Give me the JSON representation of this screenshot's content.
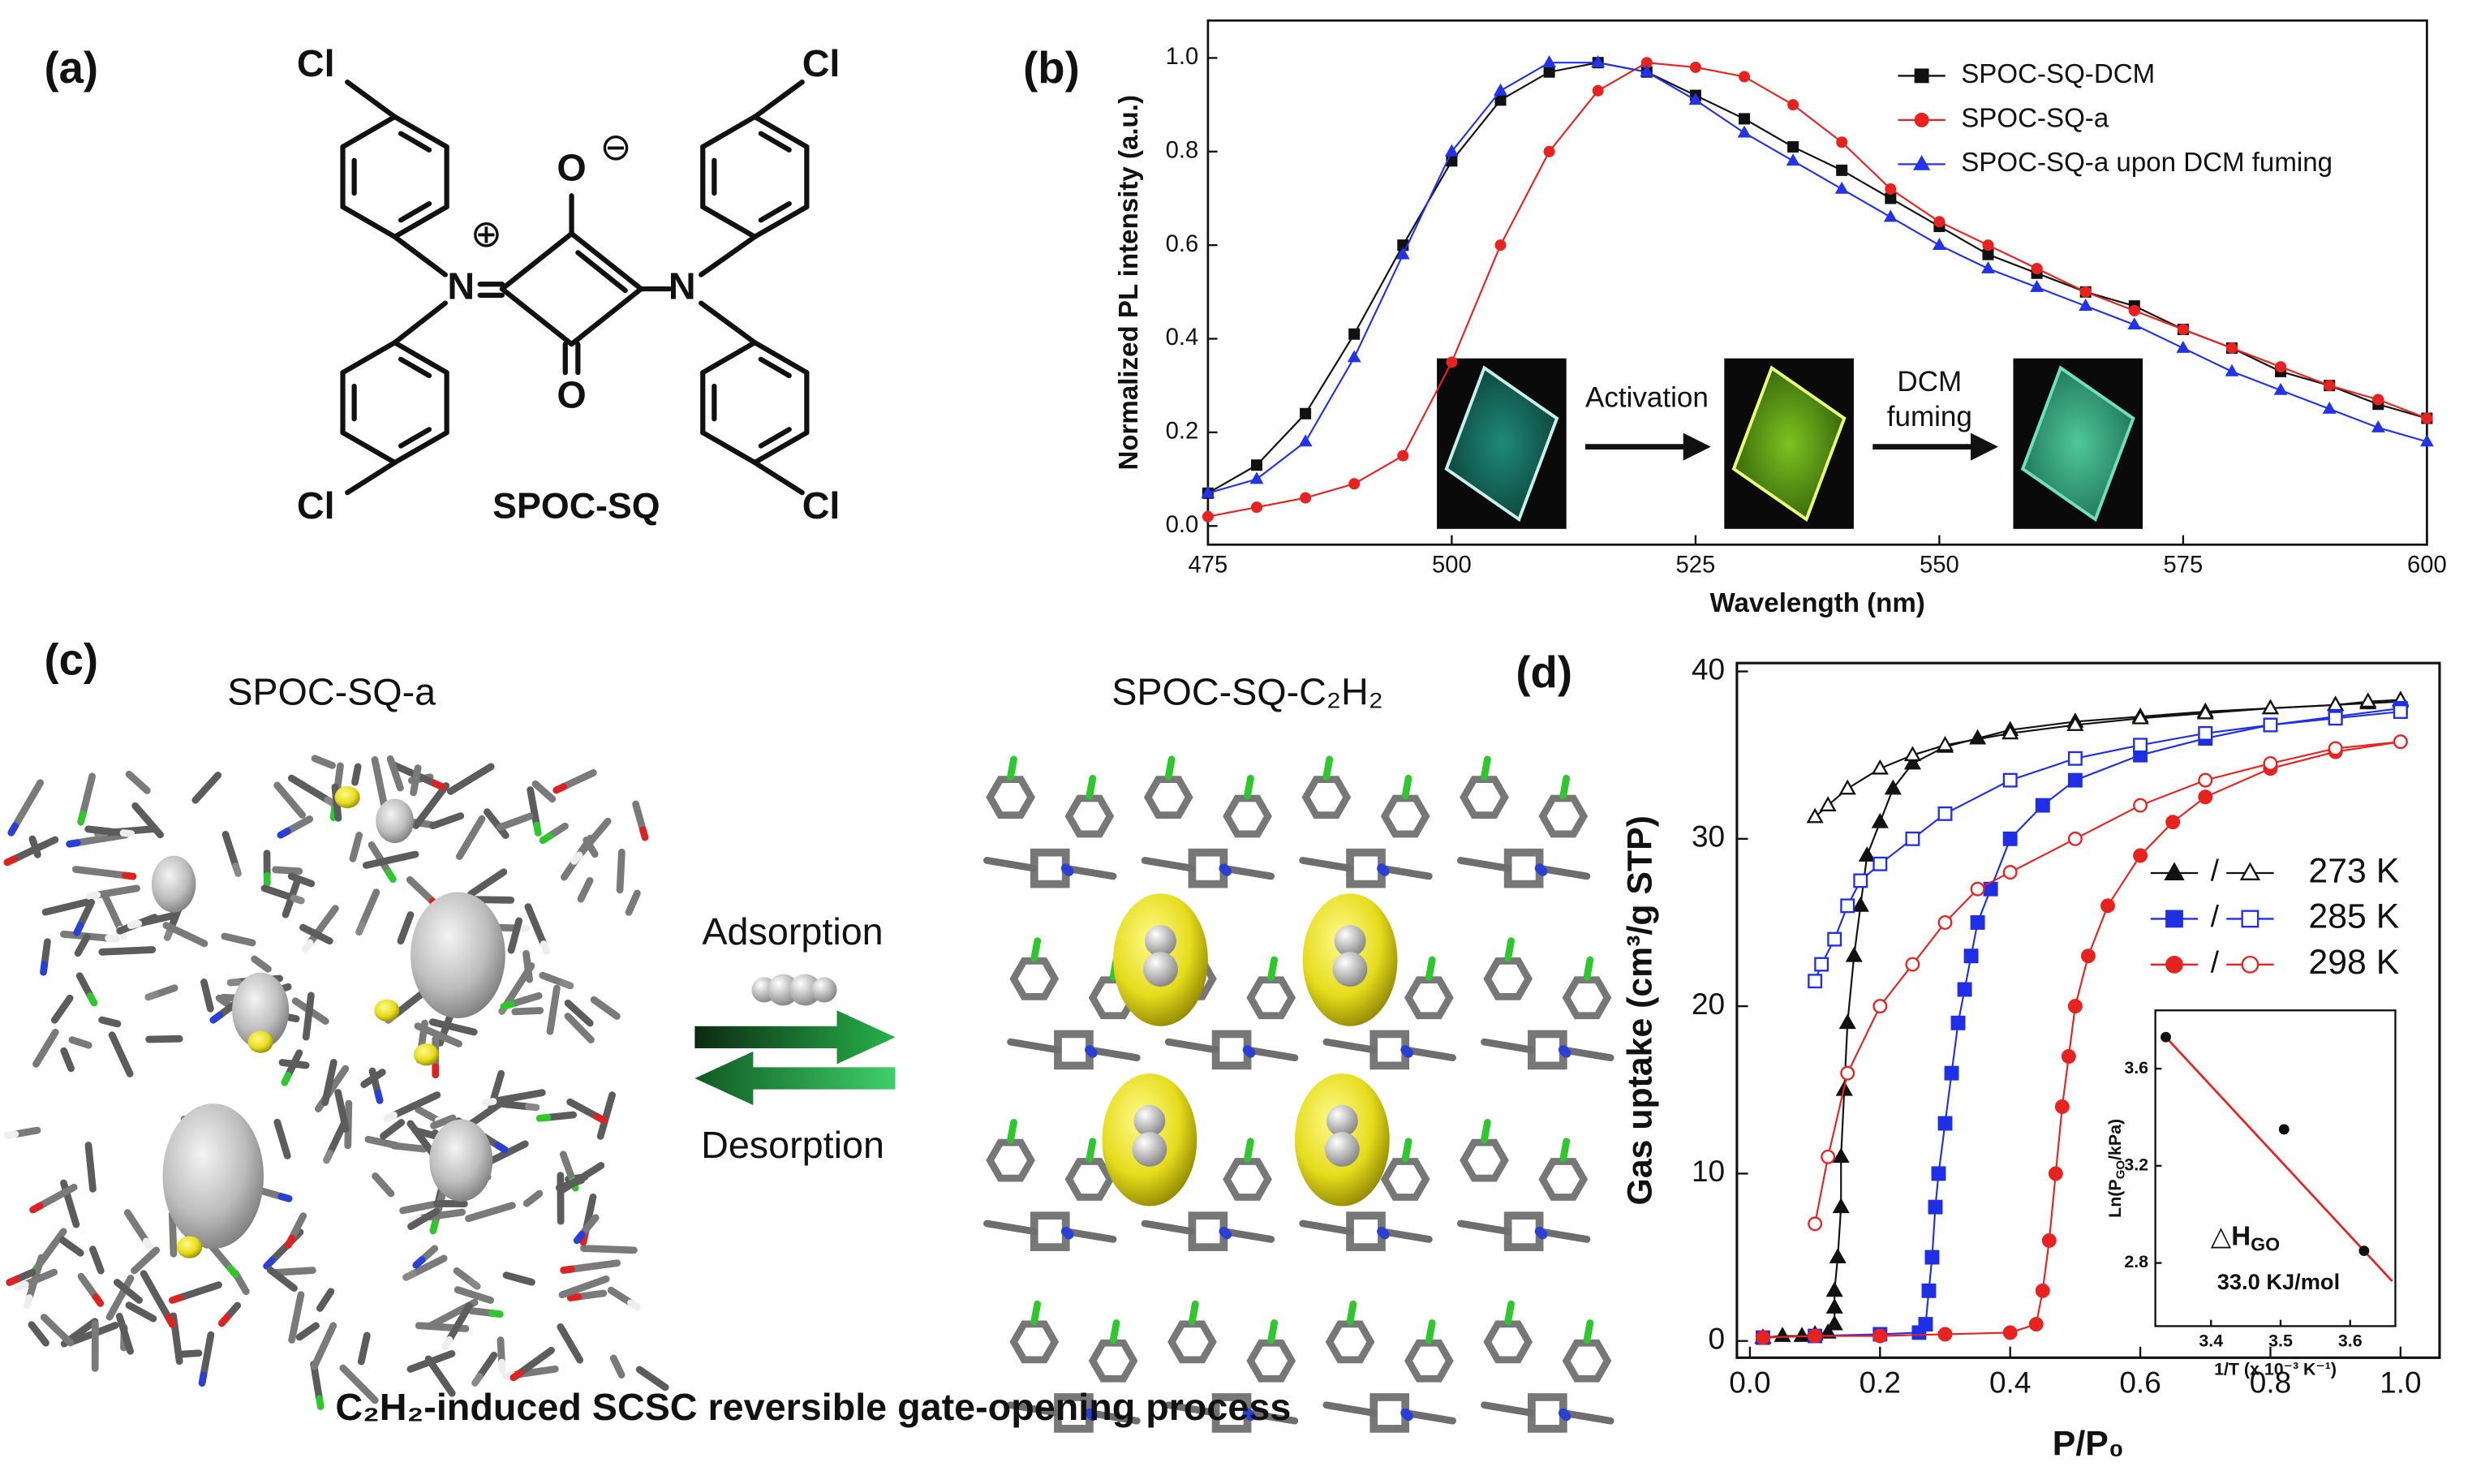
{
  "panel_labels": [
    "(a)",
    "(b)",
    "(c)",
    "(d)"
  ],
  "structure": {
    "atoms": [
      "Cl",
      "Cl",
      "Cl",
      "Cl",
      "N",
      "N",
      "O",
      "O"
    ],
    "charges": [
      "⊕",
      "⊖"
    ],
    "label": "SPOC-SQ"
  },
  "crystal": {
    "left_title": "SPOC-SQ-a",
    "right_title": "SPOC-SQ-C₂H₂",
    "adsorption": "Adsorption",
    "desorption": "Desorption",
    "caption": "C₂H₂-induced SCSC reversible gate-opening process"
  },
  "chart_data": [
    {
      "type": "line",
      "x_label": "Wavelength (nm)",
      "y_label": "Normalized PL intensity (a.u.)",
      "x": [
        475,
        480,
        485,
        490,
        495,
        500,
        505,
        510,
        515,
        520,
        525,
        530,
        535,
        540,
        545,
        550,
        555,
        560,
        565,
        570,
        575,
        580,
        585,
        590,
        595,
        600
      ],
      "xlim": [
        475,
        600
      ],
      "xticks": [
        475,
        500,
        525,
        550,
        575,
        600
      ],
      "ylim": [
        -0.04,
        1.08
      ],
      "yticks": [
        {
          "value": 0,
          "label": "0.0"
        },
        0.2,
        0.4,
        0.6,
        0.8,
        {
          "value": 1,
          "label": "1.0"
        }
      ],
      "legend": "upper right",
      "annotations": [
        [
          "Activation"
        ],
        [
          "DCM",
          "fuming"
        ]
      ],
      "series": [
        {
          "name": "SPOC-SQ-DCM",
          "color": "#111111",
          "marker": "square",
          "filled": true,
          "values": [
            0.07,
            0.13,
            0.24,
            0.41,
            0.6,
            0.78,
            0.91,
            0.97,
            0.99,
            0.97,
            0.92,
            0.87,
            0.81,
            0.76,
            0.7,
            0.64,
            0.58,
            0.54,
            0.5,
            0.47,
            0.42,
            0.38,
            0.33,
            0.3,
            0.26,
            0.23
          ]
        },
        {
          "name": "SPOC-SQ-a",
          "color": "#e8221f",
          "marker": "circle",
          "filled": true,
          "values": [
            0.02,
            0.04,
            0.06,
            0.09,
            0.15,
            0.35,
            0.6,
            0.8,
            0.93,
            0.99,
            0.98,
            0.96,
            0.9,
            0.82,
            0.72,
            0.65,
            0.6,
            0.55,
            0.5,
            0.46,
            0.42,
            0.38,
            0.34,
            0.3,
            0.27,
            0.23
          ]
        },
        {
          "name": "SPOC-SQ-a upon DCM fuming",
          "color": "#2233e8",
          "marker": "triangle",
          "filled": true,
          "values": [
            0.07,
            0.1,
            0.18,
            0.36,
            0.58,
            0.8,
            0.93,
            0.99,
            0.99,
            0.97,
            0.91,
            0.84,
            0.78,
            0.72,
            0.66,
            0.6,
            0.55,
            0.51,
            0.47,
            0.43,
            0.38,
            0.33,
            0.29,
            0.25,
            0.21,
            0.18
          ]
        }
      ]
    },
    {
      "type": "line",
      "x_label": "P/P₀",
      "y_label": "Gas uptake (cm³/g STP)",
      "xlim": [
        -0.02,
        1.06
      ],
      "xticks": [
        {
          "value": 0,
          "label": "0.0"
        },
        0.2,
        0.4,
        0.6,
        0.8,
        {
          "value": 1,
          "label": "1.0"
        }
      ],
      "ylim": [
        -1,
        40.5
      ],
      "yticks": [
        0,
        10,
        20,
        30,
        40
      ],
      "legend": "center right",
      "legend_separator": "/",
      "series": [
        {
          "name": "273 K",
          "color": "#111111",
          "marker": "triangle",
          "filled": true,
          "x": [
            0.02,
            0.05,
            0.08,
            0.1,
            0.12,
            0.13,
            0.13,
            0.13,
            0.135,
            0.14,
            0.14,
            0.145,
            0.15,
            0.16,
            0.17,
            0.18,
            0.2,
            0.22,
            0.25,
            0.3,
            0.35,
            0.4,
            0.5,
            0.6,
            0.7,
            0.8,
            0.9,
            0.95,
            1.0
          ],
          "values": [
            0.2,
            0.3,
            0.3,
            0.4,
            0.5,
            1,
            2,
            3,
            5,
            8,
            11,
            15,
            19,
            23,
            26,
            29,
            31,
            33,
            34.5,
            35.5,
            36,
            36.5,
            37,
            37.3,
            37.6,
            37.8,
            38,
            38.1,
            38.2
          ]
        },
        {
          "color": "#111111",
          "marker": "triangle",
          "filled": false,
          "x": [
            1.0,
            0.95,
            0.9,
            0.8,
            0.7,
            0.6,
            0.5,
            0.4,
            0.3,
            0.25,
            0.2,
            0.15,
            0.12,
            0.1
          ],
          "values": [
            38.3,
            38.2,
            38,
            37.8,
            37.5,
            37.2,
            36.8,
            36.3,
            35.6,
            35,
            34.2,
            33,
            32,
            31.3
          ]
        },
        {
          "name": "285 K",
          "color": "#1f2fe6",
          "marker": "square",
          "filled": true,
          "x": [
            0.02,
            0.1,
            0.2,
            0.26,
            0.27,
            0.275,
            0.28,
            0.285,
            0.29,
            0.3,
            0.31,
            0.32,
            0.33,
            0.34,
            0.35,
            0.37,
            0.4,
            0.45,
            0.5,
            0.6,
            0.7,
            0.8,
            0.9,
            1.0
          ],
          "values": [
            0.2,
            0.3,
            0.4,
            0.5,
            1,
            3,
            5,
            8,
            10,
            13,
            16,
            19,
            21,
            23,
            25,
            27,
            30,
            32,
            33.5,
            35,
            36,
            36.8,
            37.3,
            37.8
          ]
        },
        {
          "color": "#1f2fe6",
          "marker": "square",
          "filled": false,
          "x": [
            1.0,
            0.9,
            0.8,
            0.7,
            0.6,
            0.5,
            0.4,
            0.3,
            0.25,
            0.2,
            0.17,
            0.15,
            0.13,
            0.11,
            0.1
          ],
          "values": [
            37.6,
            37.2,
            36.8,
            36.3,
            35.6,
            34.8,
            33.5,
            31.5,
            30,
            28.5,
            27.5,
            26,
            24,
            22.5,
            21.5
          ]
        },
        {
          "name": "298 K",
          "color": "#e8221f",
          "marker": "circle",
          "filled": true,
          "x": [
            0.02,
            0.1,
            0.2,
            0.3,
            0.4,
            0.44,
            0.45,
            0.46,
            0.47,
            0.48,
            0.49,
            0.5,
            0.52,
            0.55,
            0.6,
            0.65,
            0.7,
            0.8,
            0.9,
            1.0
          ],
          "values": [
            0.2,
            0.3,
            0.3,
            0.4,
            0.5,
            1,
            3,
            6,
            10,
            14,
            17,
            20,
            23,
            26,
            29,
            31,
            32.5,
            34.2,
            35.2,
            35.8
          ]
        },
        {
          "color": "#e8221f",
          "marker": "circle",
          "filled": false,
          "x": [
            1.0,
            0.9,
            0.8,
            0.7,
            0.6,
            0.5,
            0.4,
            0.35,
            0.3,
            0.25,
            0.2,
            0.15,
            0.12,
            0.1
          ],
          "values": [
            35.8,
            35.4,
            34.5,
            33.5,
            32,
            30,
            28,
            27,
            25,
            22.5,
            20,
            16,
            11,
            7
          ]
        }
      ]
    },
    {
      "type": "scatter",
      "x_label": "1/T (x 10⁻³ K⁻¹)",
      "y_label": [
        "Ln(P",
        "GO",
        "/kPa)"
      ],
      "annotation": [
        "△H",
        "GO"
      ],
      "result": "33.0 KJ/mol",
      "x": [
        3.335,
        3.505,
        3.62
      ],
      "values": [
        3.73,
        3.35,
        2.85
      ],
      "color": "#111111",
      "fit_color": "#e8221f",
      "xlim": [
        3.32,
        3.665
      ],
      "xticks": [
        3.4,
        3.5,
        3.6
      ],
      "ylim": [
        2.54,
        3.84
      ],
      "yticks": [
        2.8,
        3.2,
        3.6
      ]
    }
  ]
}
